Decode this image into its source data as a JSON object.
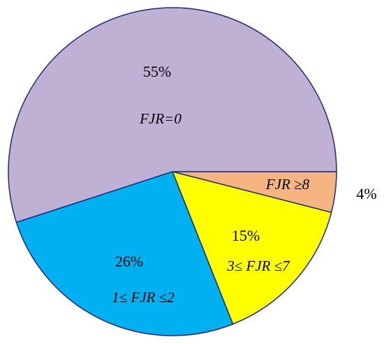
{
  "chart_data": {
    "type": "pie",
    "categories": [
      "FJR ≥8",
      "3≤ FJR ≤7",
      "1≤ FJR ≤2",
      "FJR=0"
    ],
    "values": [
      4,
      15,
      26,
      55
    ],
    "value_labels": [
      "4%",
      "15%",
      "26%",
      "55%"
    ],
    "colors": [
      "#f6b483",
      "#ffff00",
      "#00b0f0",
      "#bfb1d3"
    ]
  }
}
